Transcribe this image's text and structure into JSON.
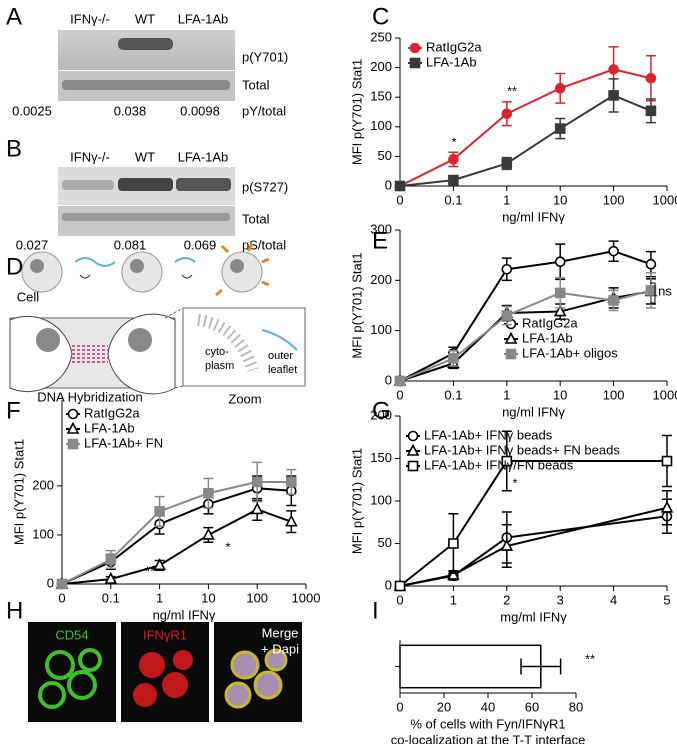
{
  "panel_labels": [
    "A",
    "B",
    "C",
    "D",
    "E",
    "F",
    "G",
    "H",
    "I"
  ],
  "blots": [
    {
      "lanes": [
        "IFNγ-/-",
        "WT",
        "LFA-1Ab"
      ],
      "rows": [
        "p(Y701)",
        "Total"
      ],
      "ratios": [
        0.0025,
        0.038,
        0.0098
      ],
      "ratio_label": "pY/total"
    },
    {
      "lanes": [
        "IFNγ-/-",
        "WT",
        "LFA-1Ab"
      ],
      "rows": [
        "p(S727)",
        "Total"
      ],
      "ratios": [
        0.027,
        0.081,
        0.069
      ],
      "ratio_label": "pS/total"
    }
  ],
  "diagram": {
    "cell": "Cell",
    "hybridization": "DNA Hybridization",
    "zoom": "Zoom",
    "inner": [
      "cyto-",
      "plasm"
    ],
    "outer": [
      "outer",
      "leaflet"
    ]
  },
  "micrograph": {
    "channels": [
      "CD54",
      "IFNγR1"
    ],
    "merge": [
      "Merge",
      "+ Dapi"
    ]
  },
  "chart_data": [
    {
      "type": "line",
      "ylabel": "MFI p(Y701) Stat1",
      "xlabel": "ng/ml IFNγ",
      "xscale": "log",
      "x": [
        0,
        0.1,
        1,
        10,
        100,
        500
      ],
      "xticks": [
        0,
        0.1,
        1,
        10,
        100,
        1000
      ],
      "ylim": [
        0,
        250
      ],
      "yticks": [
        0,
        50,
        100,
        150,
        200,
        250
      ],
      "series": [
        {
          "name": "RatIgG2a",
          "color": "#d9262e",
          "marker": "circle",
          "open": false,
          "values": [
            0,
            45,
            122,
            165,
            197,
            182
          ],
          "errors": [
            0,
            12,
            20,
            25,
            38,
            38
          ]
        },
        {
          "name": "LFA-1Ab",
          "color": "#3a3a3a",
          "marker": "square",
          "open": false,
          "values": [
            0,
            10,
            38,
            97,
            153,
            127
          ],
          "errors": [
            0,
            5,
            10,
            17,
            28,
            20
          ]
        }
      ],
      "annotations": [
        "*",
        "**"
      ]
    },
    {
      "type": "line",
      "ylabel": "MFI p(Y701) Stat1",
      "xlabel": "ng/ml IFNγ",
      "xscale": "log",
      "x": [
        0,
        0.1,
        1,
        10,
        100,
        500
      ],
      "xticks": [
        0,
        0.1,
        1,
        10,
        100,
        1000
      ],
      "ylim": [
        0,
        300
      ],
      "yticks": [
        0,
        100,
        200,
        300
      ],
      "series": [
        {
          "name": "RatIgG2a",
          "color": "#000000",
          "marker": "circle",
          "open": true,
          "values": [
            0,
            55,
            222,
            237,
            258,
            232
          ],
          "errors": [
            0,
            12,
            22,
            35,
            20,
            25
          ]
        },
        {
          "name": "LFA-1Ab",
          "color": "#000000",
          "marker": "triangle",
          "open": true,
          "values": [
            0,
            35,
            135,
            138,
            165,
            178
          ],
          "errors": [
            0,
            10,
            15,
            15,
            20,
            25
          ]
        },
        {
          "name": "LFA-1Ab+ oligos",
          "color": "#888888",
          "marker": "square",
          "open": false,
          "values": [
            0,
            45,
            130,
            175,
            160,
            180
          ],
          "errors": [
            0,
            15,
            18,
            30,
            20,
            35
          ]
        }
      ],
      "annotations": [
        "ns"
      ]
    },
    {
      "type": "line",
      "ylabel": "MFI p(Y701) Stat1",
      "xlabel": "ng/ml IFNγ",
      "xscale": "log",
      "x": [
        0,
        0.1,
        1,
        10,
        100,
        500
      ],
      "xticks": [
        0,
        0.1,
        1,
        10,
        100,
        1000
      ],
      "ylim": [
        0,
        375
      ],
      "yticks": [
        0,
        100,
        200
      ],
      "series": [
        {
          "name": "RatIgG2a",
          "color": "#000000",
          "marker": "circle",
          "open": true,
          "values": [
            0,
            45,
            122,
            163,
            195,
            190
          ],
          "errors": [
            0,
            15,
            20,
            20,
            25,
            30
          ]
        },
        {
          "name": "LFA-1Ab",
          "color": "#000000",
          "marker": "triangle",
          "open": true,
          "values": [
            0,
            10,
            38,
            100,
            152,
            127
          ],
          "errors": [
            0,
            5,
            10,
            15,
            22,
            22
          ]
        },
        {
          "name": "LFA-1Ab+ FN",
          "color": "#888888",
          "marker": "square",
          "open": false,
          "values": [
            0,
            50,
            148,
            185,
            208,
            208
          ],
          "errors": [
            0,
            18,
            30,
            30,
            40,
            25
          ]
        }
      ],
      "annotations": [
        "**",
        "*"
      ]
    },
    {
      "type": "line",
      "ylabel": "MFI p(Y701) Stat1",
      "xlabel": "mg/ml IFNγ",
      "xscale": "linear",
      "x": [
        0,
        1,
        2,
        5
      ],
      "xlim": [
        0,
        5
      ],
      "xticks": [
        0,
        1,
        2,
        3,
        4,
        5
      ],
      "ylim": [
        0,
        200
      ],
      "yticks": [
        0,
        50,
        100,
        150,
        200
      ],
      "series": [
        {
          "name": "LFA-1Ab+ IFNγ beads",
          "color": "#000000",
          "marker": "circle",
          "open": true,
          "values": [
            0,
            12,
            57,
            82
          ],
          "errors": [
            0,
            5,
            30,
            20
          ]
        },
        {
          "name": "LFA-1Ab+ IFNγ beads+ FN beads",
          "color": "#000000",
          "marker": "triangle",
          "open": true,
          "values": [
            0,
            13,
            47,
            92
          ],
          "errors": [
            0,
            5,
            25,
            20
          ]
        },
        {
          "name": "LFA-1Ab+ IFNγ/FN beads",
          "color": "#000000",
          "marker": "square",
          "open": true,
          "values": [
            0,
            50,
            147,
            147
          ],
          "errors": [
            0,
            35,
            35,
            30
          ]
        }
      ],
      "annotations": [
        "*"
      ]
    },
    {
      "type": "bar",
      "orientation": "horizontal",
      "categories": [
        null
      ],
      "values": [
        64
      ],
      "errors": [
        9
      ],
      "color": "#ffffff",
      "xlabel": [
        "% of cells with Fyn/IFNγR1",
        "co-localization at the T-T interface"
      ],
      "xlim": [
        0,
        80
      ],
      "xticks": [
        0,
        20,
        40,
        60,
        80
      ],
      "annotations": [
        "**"
      ]
    }
  ]
}
